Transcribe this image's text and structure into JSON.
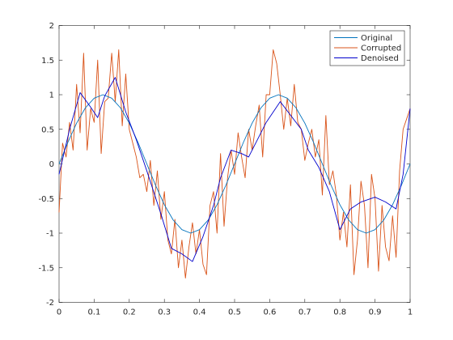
{
  "chart_data": {
    "type": "line",
    "xlim": [
      0,
      1
    ],
    "ylim": [
      -2,
      2
    ],
    "xticks": [
      "0",
      "0.1",
      "0.2",
      "0.3",
      "0.4",
      "0.5",
      "0.6",
      "0.7",
      "0.8",
      "0.9",
      "1"
    ],
    "yticks": [
      "-2",
      "-1.5",
      "-1",
      "-0.5",
      "0",
      "0.5",
      "1",
      "1.5",
      "2"
    ],
    "grid": false,
    "legend_position": "top-right",
    "series": [
      {
        "name": "Original",
        "color": "#0072BD",
        "x": [
          0,
          0.025,
          0.05,
          0.075,
          0.1,
          0.125,
          0.15,
          0.175,
          0.2,
          0.225,
          0.25,
          0.275,
          0.3,
          0.325,
          0.35,
          0.375,
          0.4,
          0.425,
          0.45,
          0.475,
          0.5,
          0.525,
          0.55,
          0.575,
          0.6,
          0.625,
          0.65,
          0.675,
          0.7,
          0.725,
          0.75,
          0.775,
          0.8,
          0.825,
          0.85,
          0.875,
          0.9,
          0.925,
          0.95,
          0.975,
          1
        ],
        "y": [
          0,
          0.31,
          0.59,
          0.81,
          0.95,
          1,
          0.95,
          0.81,
          0.59,
          0.31,
          0,
          -0.31,
          -0.59,
          -0.81,
          -0.95,
          -1,
          -0.95,
          -0.81,
          -0.59,
          -0.31,
          0,
          0.31,
          0.59,
          0.81,
          0.95,
          1,
          0.95,
          0.81,
          0.59,
          0.31,
          0,
          -0.31,
          -0.59,
          -0.81,
          -0.95,
          -1,
          -0.95,
          -0.81,
          -0.59,
          -0.31,
          0
        ]
      },
      {
        "name": "Corrupted",
        "color": "#D95319",
        "x": [
          0,
          0.01,
          0.02,
          0.03,
          0.04,
          0.05,
          0.06,
          0.07,
          0.08,
          0.09,
          0.1,
          0.11,
          0.12,
          0.13,
          0.14,
          0.15,
          0.16,
          0.17,
          0.18,
          0.19,
          0.2,
          0.21,
          0.22,
          0.23,
          0.24,
          0.25,
          0.26,
          0.27,
          0.28,
          0.29,
          0.3,
          0.31,
          0.32,
          0.33,
          0.34,
          0.35,
          0.36,
          0.37,
          0.38,
          0.39,
          0.4,
          0.41,
          0.42,
          0.43,
          0.44,
          0.45,
          0.46,
          0.47,
          0.48,
          0.49,
          0.5,
          0.51,
          0.52,
          0.53,
          0.54,
          0.55,
          0.56,
          0.57,
          0.58,
          0.59,
          0.6,
          0.61,
          0.62,
          0.63,
          0.64,
          0.65,
          0.66,
          0.67,
          0.68,
          0.69,
          0.7,
          0.71,
          0.72,
          0.73,
          0.74,
          0.75,
          0.76,
          0.77,
          0.78,
          0.79,
          0.8,
          0.81,
          0.82,
          0.83,
          0.84,
          0.85,
          0.86,
          0.87,
          0.88,
          0.89,
          0.9,
          0.91,
          0.92,
          0.93,
          0.94,
          0.95,
          0.96,
          0.97,
          0.98,
          0.99,
          1
        ],
        "y": [
          -0.7,
          0.3,
          0.1,
          0.6,
          0.2,
          1.15,
          0.45,
          1.6,
          0.2,
          0.8,
          0.6,
          1.5,
          0.15,
          0.9,
          0.95,
          1.6,
          0.9,
          1.65,
          0.55,
          1.3,
          0.5,
          0.3,
          0.1,
          -0.2,
          -0.15,
          -0.4,
          0.05,
          -0.6,
          -0.1,
          -0.8,
          -0.4,
          -1.1,
          -1.3,
          -0.8,
          -1.5,
          -1.1,
          -1.65,
          -1.2,
          -0.85,
          -1.3,
          -0.95,
          -1.45,
          -1.6,
          -0.6,
          -0.4,
          -1.0,
          0.15,
          -0.9,
          -0.2,
          0.2,
          -0.15,
          0.45,
          0.1,
          -0.2,
          0.5,
          0.2,
          0.55,
          0.85,
          0.1,
          1.0,
          1.0,
          1.65,
          1.45,
          1.0,
          0.5,
          0.95,
          0.55,
          1.15,
          0.6,
          0.5,
          0.05,
          0.3,
          0.5,
          0.1,
          0.35,
          -0.45,
          0.7,
          -0.3,
          -0.1,
          -0.45,
          -1.1,
          -0.7,
          -1.2,
          -0.3,
          -1.6,
          -1.1,
          -0.25,
          -0.6,
          -1.5,
          -0.15,
          -0.5,
          -1.55,
          -0.6,
          -1.2,
          -1.4,
          -0.75,
          -1.35,
          -0.1,
          0.5,
          0.65,
          0.8
        ]
      },
      {
        "name": "Denoised",
        "color": "#0000CC",
        "x": [
          0,
          0.03,
          0.06,
          0.09,
          0.11,
          0.13,
          0.16,
          0.19,
          0.22,
          0.25,
          0.29,
          0.32,
          0.35,
          0.38,
          0.41,
          0.44,
          0.46,
          0.49,
          0.52,
          0.54,
          0.57,
          0.59,
          0.63,
          0.66,
          0.69,
          0.71,
          0.74,
          0.77,
          0.8,
          0.83,
          0.86,
          0.9,
          0.93,
          0.96,
          0.98,
          1
        ],
        "y": [
          -0.15,
          0.5,
          1.03,
          0.82,
          0.67,
          0.98,
          1.25,
          0.75,
          0.35,
          -0.1,
          -0.72,
          -1.22,
          -1.3,
          -1.41,
          -1.05,
          -0.6,
          -0.2,
          0.2,
          0.15,
          0.1,
          0.4,
          0.6,
          0.9,
          0.7,
          0.5,
          0.2,
          -0.05,
          -0.4,
          -0.95,
          -0.65,
          -0.55,
          -0.48,
          -0.55,
          -0.65,
          -0.15,
          0.8
        ]
      }
    ]
  }
}
